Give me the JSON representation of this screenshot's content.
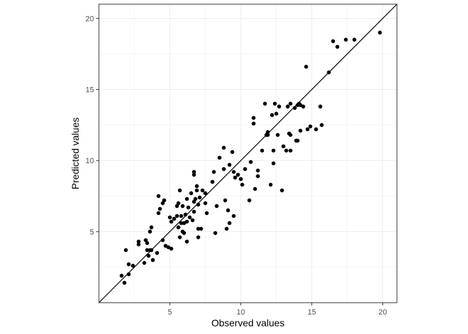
{
  "chart_data": {
    "type": "scatter",
    "title": "",
    "xlabel": "Observed values",
    "ylabel": "Predicted values",
    "xlim": [
      0,
      21
    ],
    "ylim": [
      0,
      21
    ],
    "xticks": [
      5,
      10,
      15,
      20
    ],
    "yticks": [
      5,
      10,
      15,
      20
    ],
    "grid": true,
    "legend": "none",
    "reference_line": {
      "slope": 1,
      "intercept": 0
    },
    "colors": {
      "points": "#000000",
      "line": "#000000",
      "grid": "#ebebeb",
      "panel_border": "#333333"
    },
    "points": [
      [
        1.6,
        1.9
      ],
      [
        1.8,
        1.4
      ],
      [
        1.9,
        3.7
      ],
      [
        2.1,
        2.0
      ],
      [
        2.1,
        2.7
      ],
      [
        2.4,
        2.6
      ],
      [
        2.8,
        4.1
      ],
      [
        2.8,
        4.3
      ],
      [
        3.2,
        2.8
      ],
      [
        3.3,
        4.4
      ],
      [
        3.4,
        4.2
      ],
      [
        3.4,
        3.7
      ],
      [
        3.5,
        3.3
      ],
      [
        3.6,
        3.7
      ],
      [
        3.6,
        5.0
      ],
      [
        3.7,
        5.3
      ],
      [
        3.8,
        3.0
      ],
      [
        3.7,
        3.7
      ],
      [
        4.1,
        3.5
      ],
      [
        4.2,
        6.3
      ],
      [
        4.2,
        7.5
      ],
      [
        4.3,
        6.6
      ],
      [
        4.5,
        7.0
      ],
      [
        4.6,
        7.2
      ],
      [
        4.5,
        4.4
      ],
      [
        4.7,
        4.0
      ],
      [
        4.9,
        3.9
      ],
      [
        5.0,
        6.0
      ],
      [
        5.1,
        5.7
      ],
      [
        5.1,
        3.8
      ],
      [
        5.3,
        5.9
      ],
      [
        5.5,
        6.1
      ],
      [
        5.5,
        6.8
      ],
      [
        5.6,
        5.3
      ],
      [
        5.6,
        7.0
      ],
      [
        5.7,
        7.9
      ],
      [
        5.7,
        4.6
      ],
      [
        5.8,
        5.6
      ],
      [
        5.8,
        6.1
      ],
      [
        5.9,
        5.0
      ],
      [
        5.9,
        6.8
      ],
      [
        6.0,
        5.6
      ],
      [
        6.0,
        4.9
      ],
      [
        6.1,
        6.2
      ],
      [
        6.2,
        7.3
      ],
      [
        6.2,
        5.7
      ],
      [
        6.2,
        4.3
      ],
      [
        6.3,
        6.7
      ],
      [
        6.4,
        6.0
      ],
      [
        6.5,
        7.7
      ],
      [
        6.6,
        5.8
      ],
      [
        6.7,
        9.0
      ],
      [
        6.7,
        9.2
      ],
      [
        6.7,
        7.1
      ],
      [
        6.7,
        6.4
      ],
      [
        6.8,
        7.3
      ],
      [
        6.9,
        7.9
      ],
      [
        6.9,
        8.2
      ],
      [
        7.0,
        6.9
      ],
      [
        7.0,
        5.2
      ],
      [
        7.0,
        4.6
      ],
      [
        7.1,
        7.4
      ],
      [
        7.2,
        5.2
      ],
      [
        7.3,
        7.9
      ],
      [
        7.5,
        7.0
      ],
      [
        7.5,
        7.7
      ],
      [
        7.6,
        6.3
      ],
      [
        8.0,
        8.5
      ],
      [
        8.1,
        9.2
      ],
      [
        8.2,
        4.9
      ],
      [
        8.3,
        6.8
      ],
      [
        8.5,
        10.2
      ],
      [
        8.8,
        9.4
      ],
      [
        8.8,
        10.9
      ],
      [
        8.9,
        7.2
      ],
      [
        9.0,
        5.2
      ],
      [
        9.1,
        6.5
      ],
      [
        9.2,
        5.6
      ],
      [
        9.2,
        9.7
      ],
      [
        9.4,
        10.6
      ],
      [
        9.5,
        6.1
      ],
      [
        9.5,
        9.2
      ],
      [
        9.6,
        8.8
      ],
      [
        9.8,
        9.0
      ],
      [
        10.0,
        8.7
      ],
      [
        10.1,
        8.3
      ],
      [
        10.3,
        9.4
      ],
      [
        10.6,
        7.2
      ],
      [
        10.7,
        9.9
      ],
      [
        10.9,
        12.6
      ],
      [
        10.9,
        13.0
      ],
      [
        11.0,
        8.0
      ],
      [
        11.2,
        9.3
      ],
      [
        11.2,
        8.9
      ],
      [
        11.5,
        10.7
      ],
      [
        11.7,
        14.0
      ],
      [
        11.8,
        11.8
      ],
      [
        11.9,
        11.8
      ],
      [
        11.9,
        12.0
      ],
      [
        12.1,
        8.3
      ],
      [
        12.2,
        13.2
      ],
      [
        12.3,
        9.8
      ],
      [
        12.3,
        10.7
      ],
      [
        12.4,
        14.0
      ],
      [
        12.5,
        13.3
      ],
      [
        12.6,
        11.8
      ],
      [
        12.7,
        13.8
      ],
      [
        12.9,
        7.9
      ],
      [
        13.0,
        11.0
      ],
      [
        13.2,
        10.7
      ],
      [
        13.3,
        13.8
      ],
      [
        13.4,
        11.9
      ],
      [
        13.5,
        11.8
      ],
      [
        13.5,
        14.0
      ],
      [
        13.5,
        10.7
      ],
      [
        13.8,
        13.7
      ],
      [
        13.9,
        11.4
      ],
      [
        14.0,
        11.4
      ],
      [
        14.0,
        13.9
      ],
      [
        14.1,
        14.0
      ],
      [
        14.2,
        13.9
      ],
      [
        14.2,
        12.1
      ],
      [
        14.4,
        13.8
      ],
      [
        14.6,
        16.6
      ],
      [
        14.7,
        12.2
      ],
      [
        14.9,
        12.4
      ],
      [
        15.3,
        12.2
      ],
      [
        15.6,
        13.8
      ],
      [
        15.7,
        12.5
      ],
      [
        16.2,
        16.2
      ],
      [
        16.5,
        18.4
      ],
      [
        16.8,
        18.0
      ],
      [
        17.4,
        18.5
      ],
      [
        18.0,
        18.5
      ],
      [
        19.8,
        19.0
      ]
    ]
  }
}
